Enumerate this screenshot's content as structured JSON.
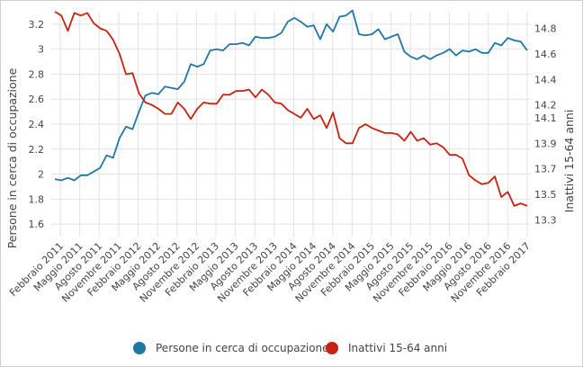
{
  "chart_data": {
    "type": "line",
    "title": "",
    "y_left": {
      "label": "Persone in cerca di occupazione",
      "ylim": [
        1.5,
        3.3
      ],
      "ticks": [
        1.6,
        1.8,
        2,
        2.2,
        2.4,
        2.6,
        2.8,
        3,
        3.2
      ]
    },
    "y_right": {
      "label": "Inattivi 15-64 anni",
      "ylim": [
        13.17,
        14.93
      ],
      "ticks": [
        13.3,
        13.5,
        13.7,
        13.9,
        14.1,
        14.2,
        14.4,
        14.6,
        14.8
      ],
      "tick_labels": [
        "13.3",
        "13.5",
        "13.7",
        "13.9",
        "14.1",
        "14.2",
        "14.4",
        "14.6",
        "14.8"
      ]
    },
    "x_tick_labels": [
      "Febbraio 2011",
      "Maggio 2011",
      "Agosto 2011",
      "Novembre 2011",
      "Febbraio 2012",
      "Maggio 2012",
      "Agosto 2012",
      "Novembre 2012",
      "Febbraio 2013",
      "Maggio 2013",
      "Agosto 2013",
      "Novembre 2013",
      "Febbraio 2014",
      "Maggio 2014",
      "Agosto 2014",
      "Novembre 2014",
      "Febbraio 2015",
      "Maggio 2015",
      "Agosto 2015",
      "Novembre 2015",
      "Febbraio 2016",
      "Maggio 2016",
      "Agosto 2016",
      "Novembre 2016",
      "Febbraio 2017"
    ],
    "series": [
      {
        "name": "Persone in cerca di occupazione",
        "axis": "left",
        "color": "#1f77a4",
        "values": [
          1.96,
          1.95,
          1.97,
          1.95,
          1.99,
          1.99,
          2.02,
          2.05,
          2.15,
          2.13,
          2.29,
          2.38,
          2.36,
          2.5,
          2.63,
          2.65,
          2.64,
          2.7,
          2.69,
          2.68,
          2.74,
          2.88,
          2.86,
          2.88,
          2.99,
          3.0,
          2.99,
          3.04,
          3.04,
          3.05,
          3.03,
          3.1,
          3.09,
          3.09,
          3.1,
          3.13,
          3.22,
          3.25,
          3.22,
          3.18,
          3.19,
          3.08,
          3.2,
          3.14,
          3.26,
          3.27,
          3.31,
          3.12,
          3.11,
          3.12,
          3.16,
          3.08,
          3.1,
          3.12,
          2.98,
          2.94,
          2.92,
          2.95,
          2.92,
          2.95,
          2.97,
          3.0,
          2.95,
          2.99,
          2.98,
          3.0,
          2.97,
          2.97,
          3.05,
          3.03,
          3.09,
          3.07,
          3.06,
          2.99
        ]
      },
      {
        "name": "Inattivi 15-64 anni",
        "axis": "right",
        "color": "#c9210f",
        "values": [
          14.93,
          14.9,
          14.78,
          14.92,
          14.9,
          14.92,
          14.84,
          14.8,
          14.78,
          14.71,
          14.6,
          14.44,
          14.45,
          14.29,
          14.22,
          14.2,
          14.17,
          14.13,
          14.13,
          14.22,
          14.17,
          14.09,
          14.17,
          14.22,
          14.21,
          14.21,
          14.28,
          14.28,
          14.31,
          14.31,
          14.32,
          14.26,
          14.32,
          14.28,
          14.22,
          14.21,
          14.16,
          14.13,
          14.1,
          14.17,
          14.09,
          14.12,
          14.02,
          14.14,
          13.94,
          13.9,
          13.9,
          14.02,
          14.05,
          14.02,
          14.0,
          13.98,
          13.98,
          13.97,
          13.92,
          13.99,
          13.92,
          13.94,
          13.89,
          13.9,
          13.87,
          13.81,
          13.81,
          13.78,
          13.65,
          13.61,
          13.58,
          13.59,
          13.64,
          13.48,
          13.52,
          13.41,
          13.43,
          13.41
        ]
      }
    ],
    "legend": {
      "position": "bottom",
      "entries": [
        "Persone in cerca di occupazione",
        "Inattivi 15-64 anni"
      ]
    }
  }
}
